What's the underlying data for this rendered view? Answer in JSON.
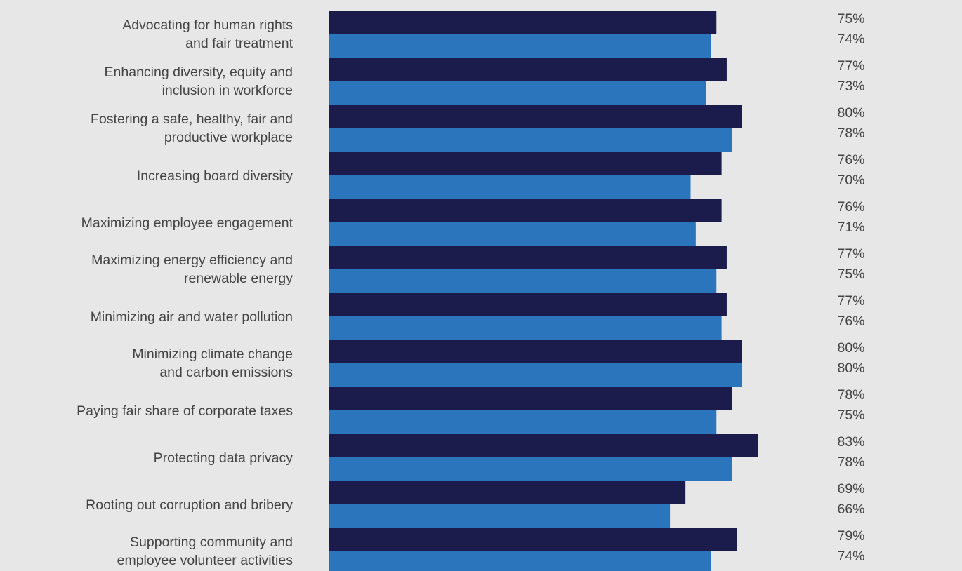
{
  "colors": {
    "background": "#e7e7e7",
    "series_1": "#1c1c4c",
    "series_2": "#2b75bd",
    "text": "#444444",
    "separator": "#b9b9b9"
  },
  "chart_data": {
    "type": "bar",
    "orientation": "horizontal",
    "grid": false,
    "legend": "none",
    "xlim": [
      0,
      100
    ],
    "categories": [
      [
        "Advocating for human rights",
        "and fair treatment"
      ],
      [
        "Enhancing diversity, equity and",
        "inclusion in workforce"
      ],
      [
        "Fostering a safe, healthy, fair and",
        "productive workplace"
      ],
      [
        "Increasing board diversity"
      ],
      [
        "Maximizing employee engagement"
      ],
      [
        "Maximizing energy efficiency and",
        "renewable energy"
      ],
      [
        "Minimizing air and water pollution"
      ],
      [
        "Minimizing climate change",
        "and carbon emissions"
      ],
      [
        "Paying fair share of corporate taxes"
      ],
      [
        "Protecting data privacy"
      ],
      [
        "Rooting out corruption and bribery"
      ],
      [
        "Supporting community and",
        "employee volunteer activities"
      ]
    ],
    "series": [
      {
        "values": [
          75,
          77,
          80,
          76,
          76,
          77,
          77,
          80,
          78,
          83,
          69,
          79
        ],
        "labels": [
          "75%",
          "77%",
          "80%",
          "76%",
          "76%",
          "77%",
          "77%",
          "80%",
          "78%",
          "83%",
          "69%",
          "79%"
        ]
      },
      {
        "values": [
          74,
          73,
          78,
          70,
          71,
          75,
          76,
          80,
          75,
          78,
          66,
          74
        ],
        "labels": [
          "74%",
          "73%",
          "78%",
          "70%",
          "71%",
          "75%",
          "76%",
          "80%",
          "75%",
          "78%",
          "66%",
          "74%"
        ]
      }
    ]
  }
}
